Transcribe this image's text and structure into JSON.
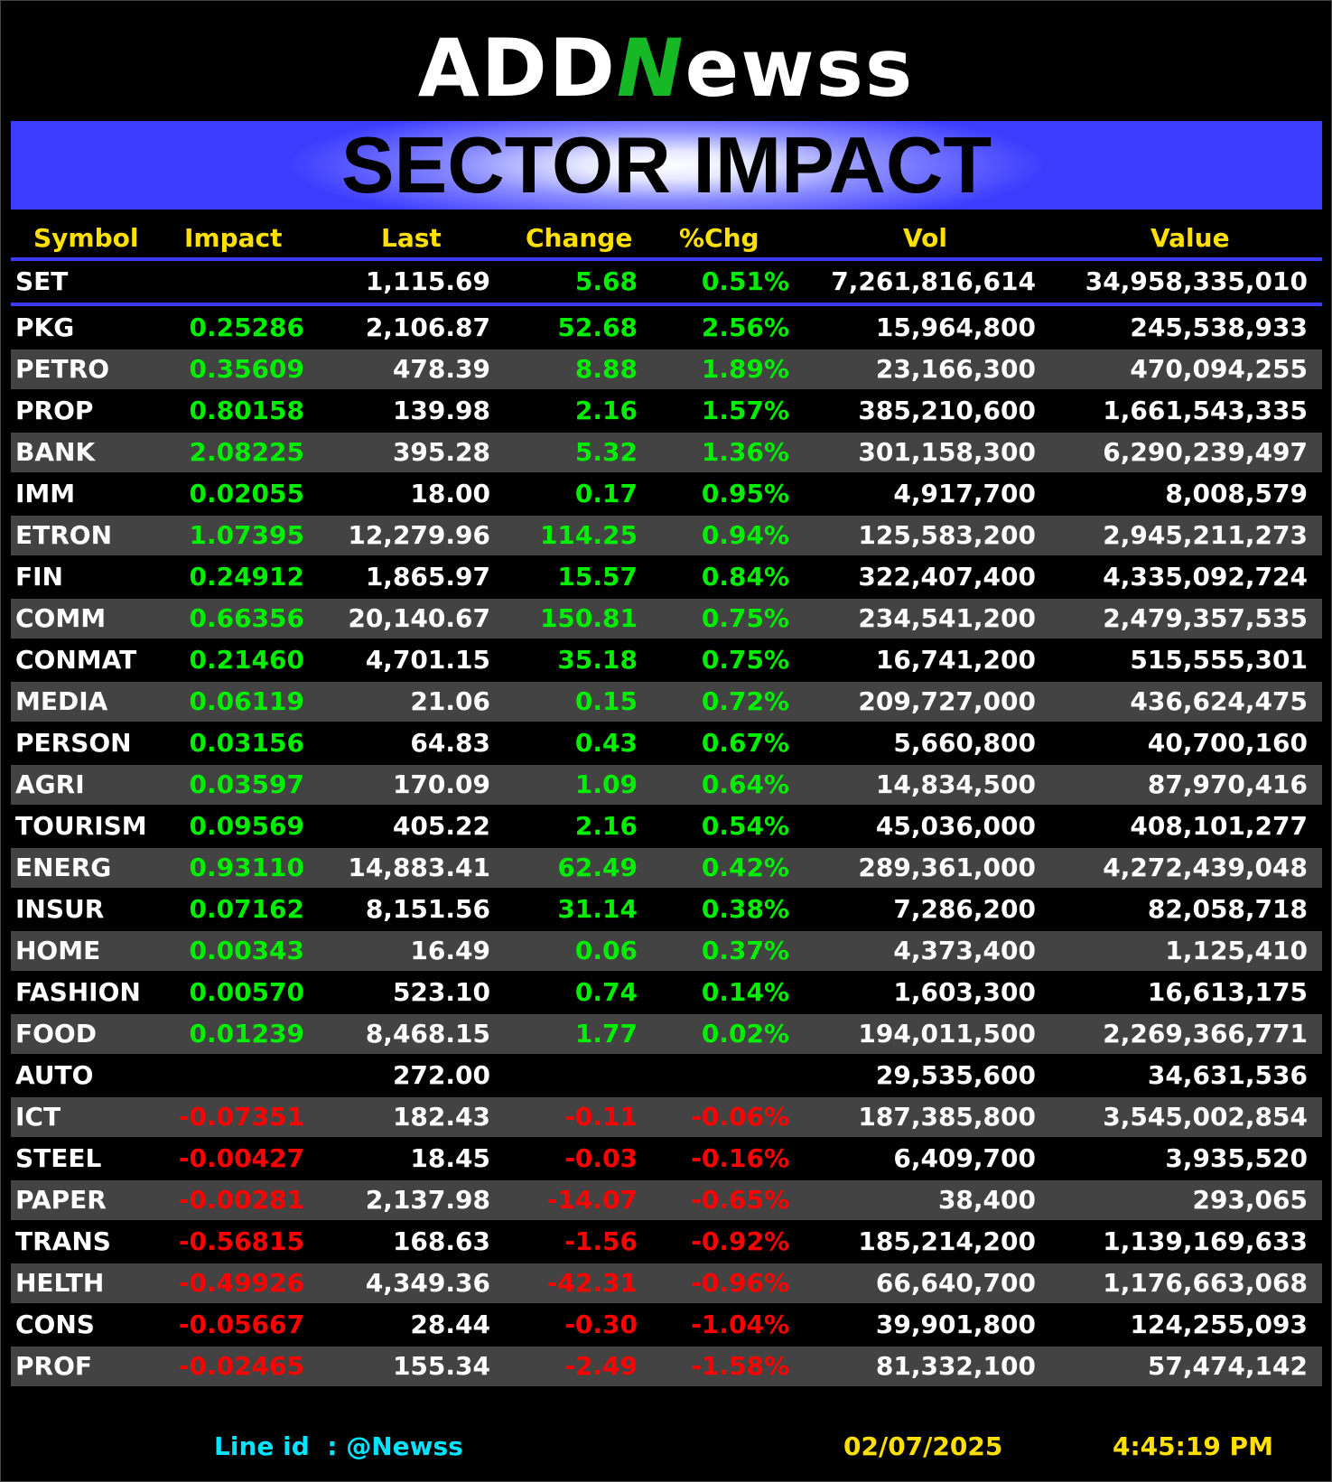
{
  "logo": {
    "part1": "ADD",
    "part2": "N",
    "part3": "ewss"
  },
  "banner": {
    "title": "SECTOR IMPACT"
  },
  "headers": {
    "symbol": "Symbol",
    "impact": "Impact",
    "last": "Last",
    "change": "Change",
    "pct": "%Chg",
    "vol": "Vol",
    "value": "Value"
  },
  "set": {
    "symbol": "SET",
    "last": "1,115.69",
    "change": "5.68",
    "pct": "0.51%",
    "vol": "7,261,816,614",
    "value": "34,958,335,010"
  },
  "colors": {
    "up": "#00ee00",
    "down": "#ff0000",
    "header": "#ffe000",
    "accent": "#3b3bff",
    "footer_line": "#00e5ff",
    "footer_date": "#ffe000"
  },
  "rows": [
    {
      "symbol": "PKG",
      "impact": "0.25286",
      "last": "2,106.87",
      "change": "52.68",
      "pct": "2.56%",
      "vol": "15,964,800",
      "value": "245,538,933",
      "dir": "up"
    },
    {
      "symbol": "PETRO",
      "impact": "0.35609",
      "last": "478.39",
      "change": "8.88",
      "pct": "1.89%",
      "vol": "23,166,300",
      "value": "470,094,255",
      "dir": "up"
    },
    {
      "symbol": "PROP",
      "impact": "0.80158",
      "last": "139.98",
      "change": "2.16",
      "pct": "1.57%",
      "vol": "385,210,600",
      "value": "1,661,543,335",
      "dir": "up"
    },
    {
      "symbol": "BANK",
      "impact": "2.08225",
      "last": "395.28",
      "change": "5.32",
      "pct": "1.36%",
      "vol": "301,158,300",
      "value": "6,290,239,497",
      "dir": "up"
    },
    {
      "symbol": "IMM",
      "impact": "0.02055",
      "last": "18.00",
      "change": "0.17",
      "pct": "0.95%",
      "vol": "4,917,700",
      "value": "8,008,579",
      "dir": "up"
    },
    {
      "symbol": "ETRON",
      "impact": "1.07395",
      "last": "12,279.96",
      "change": "114.25",
      "pct": "0.94%",
      "vol": "125,583,200",
      "value": "2,945,211,273",
      "dir": "up"
    },
    {
      "symbol": "FIN",
      "impact": "0.24912",
      "last": "1,865.97",
      "change": "15.57",
      "pct": "0.84%",
      "vol": "322,407,400",
      "value": "4,335,092,724",
      "dir": "up"
    },
    {
      "symbol": "COMM",
      "impact": "0.66356",
      "last": "20,140.67",
      "change": "150.81",
      "pct": "0.75%",
      "vol": "234,541,200",
      "value": "2,479,357,535",
      "dir": "up"
    },
    {
      "symbol": "CONMAT",
      "impact": "0.21460",
      "last": "4,701.15",
      "change": "35.18",
      "pct": "0.75%",
      "vol": "16,741,200",
      "value": "515,555,301",
      "dir": "up"
    },
    {
      "symbol": "MEDIA",
      "impact": "0.06119",
      "last": "21.06",
      "change": "0.15",
      "pct": "0.72%",
      "vol": "209,727,000",
      "value": "436,624,475",
      "dir": "up"
    },
    {
      "symbol": "PERSON",
      "impact": "0.03156",
      "last": "64.83",
      "change": "0.43",
      "pct": "0.67%",
      "vol": "5,660,800",
      "value": "40,700,160",
      "dir": "up"
    },
    {
      "symbol": "AGRI",
      "impact": "0.03597",
      "last": "170.09",
      "change": "1.09",
      "pct": "0.64%",
      "vol": "14,834,500",
      "value": "87,970,416",
      "dir": "up"
    },
    {
      "symbol": "TOURISM",
      "impact": "0.09569",
      "last": "405.22",
      "change": "2.16",
      "pct": "0.54%",
      "vol": "45,036,000",
      "value": "408,101,277",
      "dir": "up"
    },
    {
      "symbol": "ENERG",
      "impact": "0.93110",
      "last": "14,883.41",
      "change": "62.49",
      "pct": "0.42%",
      "vol": "289,361,000",
      "value": "4,272,439,048",
      "dir": "up"
    },
    {
      "symbol": "INSUR",
      "impact": "0.07162",
      "last": "8,151.56",
      "change": "31.14",
      "pct": "0.38%",
      "vol": "7,286,200",
      "value": "82,058,718",
      "dir": "up"
    },
    {
      "symbol": "HOME",
      "impact": "0.00343",
      "last": "16.49",
      "change": "0.06",
      "pct": "0.37%",
      "vol": "4,373,400",
      "value": "1,125,410",
      "dir": "up"
    },
    {
      "symbol": "FASHION",
      "impact": "0.00570",
      "last": "523.10",
      "change": "0.74",
      "pct": "0.14%",
      "vol": "1,603,300",
      "value": "16,613,175",
      "dir": "up"
    },
    {
      "symbol": "FOOD",
      "impact": "0.01239",
      "last": "8,468.15",
      "change": "1.77",
      "pct": "0.02%",
      "vol": "194,011,500",
      "value": "2,269,366,771",
      "dir": "up"
    },
    {
      "symbol": "AUTO",
      "impact": "",
      "last": "272.00",
      "change": "",
      "pct": "",
      "vol": "29,535,600",
      "value": "34,631,536",
      "dir": "flat"
    },
    {
      "symbol": "ICT",
      "impact": "-0.07351",
      "last": "182.43",
      "change": "-0.11",
      "pct": "-0.06%",
      "vol": "187,385,800",
      "value": "3,545,002,854",
      "dir": "down"
    },
    {
      "symbol": "STEEL",
      "impact": "-0.00427",
      "last": "18.45",
      "change": "-0.03",
      "pct": "-0.16%",
      "vol": "6,409,700",
      "value": "3,935,520",
      "dir": "down"
    },
    {
      "symbol": "PAPER",
      "impact": "-0.00281",
      "last": "2,137.98",
      "change": "-14.07",
      "pct": "-0.65%",
      "vol": "38,400",
      "value": "293,065",
      "dir": "down"
    },
    {
      "symbol": "TRANS",
      "impact": "-0.56815",
      "last": "168.63",
      "change": "-1.56",
      "pct": "-0.92%",
      "vol": "185,214,200",
      "value": "1,139,169,633",
      "dir": "down"
    },
    {
      "symbol": "HELTH",
      "impact": "-0.49926",
      "last": "4,349.36",
      "change": "-42.31",
      "pct": "-0.96%",
      "vol": "66,640,700",
      "value": "1,176,663,068",
      "dir": "down"
    },
    {
      "symbol": "CONS",
      "impact": "-0.05667",
      "last": "28.44",
      "change": "-0.30",
      "pct": "-1.04%",
      "vol": "39,901,800",
      "value": "124,255,093",
      "dir": "down"
    },
    {
      "symbol": "PROF",
      "impact": "-0.02465",
      "last": "155.34",
      "change": "-2.49",
      "pct": "-1.58%",
      "vol": "81,332,100",
      "value": "57,474,142",
      "dir": "down"
    }
  ],
  "footer": {
    "line_label": "Line id",
    "line_sep": ":",
    "line_id": "@Newss",
    "date": "02/07/2025",
    "time": "4:45:19 PM"
  }
}
